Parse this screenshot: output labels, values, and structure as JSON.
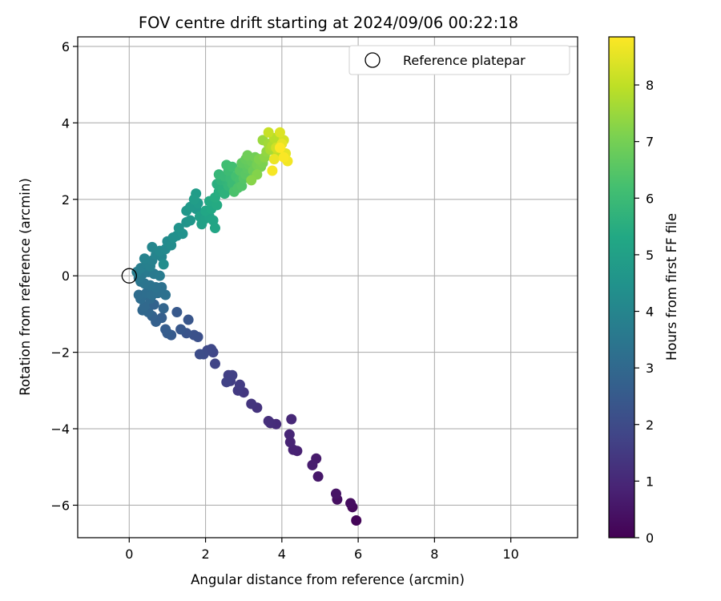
{
  "chart_data": {
    "type": "scatter",
    "title": "FOV centre drift starting at 2024/09/06 00:22:18",
    "xlabel": "Angular distance from reference (arcmin)",
    "ylabel": "Rotation from reference (arcmin)",
    "xlim": [
      -1.35,
      11.75
    ],
    "ylim": [
      -6.85,
      6.25
    ],
    "xticks": [
      0,
      2,
      4,
      6,
      8,
      10
    ],
    "yticks": [
      -6,
      -4,
      -2,
      0,
      2,
      4,
      6
    ],
    "grid": true,
    "legend": {
      "placement": "top-right",
      "entries": [
        {
          "label": "Reference platepar",
          "marker": "open-circle",
          "x": 0,
          "y": 0
        }
      ]
    },
    "colorbar": {
      "label": "Hours from first FF file",
      "colormap": "viridis",
      "range": [
        0,
        8.85
      ],
      "ticks": [
        0,
        1,
        2,
        3,
        4,
        5,
        6,
        7,
        8
      ]
    },
    "series": [
      {
        "points": [
          [
            5.95,
            -6.4,
            0.1
          ],
          [
            5.85,
            -6.05,
            0.2
          ],
          [
            5.8,
            -5.95,
            0.3
          ],
          [
            5.45,
            -5.85,
            0.35
          ],
          [
            5.42,
            -5.7,
            0.45
          ],
          [
            4.95,
            -5.25,
            0.55
          ],
          [
            4.9,
            -4.78,
            0.65
          ],
          [
            4.8,
            -4.95,
            0.7
          ],
          [
            4.4,
            -4.58,
            0.8
          ],
          [
            4.3,
            -4.55,
            0.85
          ],
          [
            4.22,
            -4.35,
            0.9
          ],
          [
            4.2,
            -4.15,
            0.95
          ],
          [
            4.25,
            -3.75,
            1.0
          ],
          [
            3.85,
            -3.88,
            1.1
          ],
          [
            3.7,
            -3.85,
            1.15
          ],
          [
            3.65,
            -3.8,
            1.2
          ],
          [
            3.35,
            -3.45,
            1.3
          ],
          [
            3.2,
            -3.35,
            1.35
          ],
          [
            3.0,
            -3.05,
            1.45
          ],
          [
            2.85,
            -3.0,
            1.5
          ],
          [
            2.9,
            -2.85,
            1.55
          ],
          [
            2.65,
            -2.75,
            1.6
          ],
          [
            2.6,
            -2.6,
            1.65
          ],
          [
            2.7,
            -2.6,
            1.7
          ],
          [
            2.55,
            -2.78,
            1.72
          ],
          [
            2.25,
            -2.3,
            1.8
          ],
          [
            2.2,
            -2.0,
            1.85
          ],
          [
            2.15,
            -1.92,
            1.9
          ],
          [
            2.05,
            -1.95,
            1.95
          ],
          [
            1.95,
            -2.05,
            2.0
          ],
          [
            1.85,
            -2.05,
            2.05
          ],
          [
            1.8,
            -1.6,
            2.15
          ],
          [
            1.7,
            -1.55,
            2.2
          ],
          [
            1.5,
            -1.5,
            2.3
          ],
          [
            1.55,
            -1.15,
            2.35
          ],
          [
            1.35,
            -1.4,
            2.4
          ],
          [
            1.25,
            -0.95,
            2.45
          ],
          [
            1.1,
            -1.55,
            2.5
          ],
          [
            1.0,
            -1.5,
            2.55
          ],
          [
            0.95,
            -1.4,
            2.6
          ],
          [
            0.85,
            -1.1,
            2.65
          ],
          [
            0.7,
            -1.2,
            2.7
          ],
          [
            0.6,
            -1.05,
            2.75
          ],
          [
            0.65,
            -0.75,
            2.8
          ],
          [
            0.9,
            -0.85,
            2.85
          ],
          [
            0.5,
            -0.95,
            2.9
          ],
          [
            0.35,
            -0.9,
            2.95
          ],
          [
            0.4,
            -0.8,
            3.0
          ],
          [
            0.55,
            -0.6,
            3.05
          ],
          [
            0.3,
            -0.6,
            3.1
          ],
          [
            0.25,
            -0.5,
            3.15
          ],
          [
            0.45,
            -0.45,
            3.2
          ],
          [
            0.6,
            -0.5,
            3.22
          ],
          [
            0.75,
            -0.45,
            3.25
          ],
          [
            0.95,
            -0.5,
            3.28
          ],
          [
            0.85,
            -0.3,
            3.3
          ],
          [
            0.7,
            -0.3,
            3.32
          ],
          [
            0.55,
            -0.25,
            3.35
          ],
          [
            0.4,
            -0.2,
            3.4
          ],
          [
            0.3,
            -0.15,
            3.45
          ],
          [
            0.25,
            -0.05,
            3.5
          ],
          [
            0.35,
            0.05,
            3.55
          ],
          [
            0.5,
            0.1,
            3.6
          ],
          [
            0.65,
            0.05,
            3.62
          ],
          [
            0.8,
            0.0,
            3.65
          ],
          [
            0.2,
            0.1,
            3.7
          ],
          [
            0.3,
            0.2,
            3.75
          ],
          [
            0.45,
            0.3,
            3.8
          ],
          [
            0.55,
            0.25,
            3.82
          ],
          [
            0.6,
            0.4,
            3.85
          ],
          [
            0.4,
            0.45,
            3.9
          ],
          [
            0.7,
            0.55,
            3.95
          ],
          [
            0.85,
            0.5,
            4.0
          ],
          [
            0.6,
            0.75,
            4.05
          ],
          [
            0.8,
            0.65,
            4.1
          ],
          [
            0.95,
            0.7,
            4.15
          ],
          [
            1.0,
            0.9,
            4.2
          ],
          [
            1.1,
            0.8,
            4.25
          ],
          [
            0.9,
            0.3,
            4.3
          ],
          [
            1.15,
            1.0,
            4.35
          ],
          [
            1.25,
            1.05,
            4.4
          ],
          [
            1.4,
            1.1,
            4.45
          ],
          [
            1.3,
            1.25,
            4.5
          ],
          [
            1.5,
            1.4,
            4.55
          ],
          [
            1.6,
            1.45,
            4.6
          ],
          [
            1.5,
            1.7,
            4.65
          ],
          [
            1.75,
            1.75,
            4.7
          ],
          [
            1.6,
            1.8,
            4.75
          ],
          [
            1.8,
            1.9,
            4.8
          ],
          [
            1.75,
            2.15,
            4.85
          ],
          [
            1.7,
            2.0,
            4.9
          ],
          [
            1.85,
            1.55,
            4.95
          ],
          [
            1.9,
            1.35,
            5.0
          ],
          [
            2.0,
            1.5,
            5.05
          ],
          [
            2.1,
            1.55,
            5.1
          ],
          [
            2.2,
            1.45,
            5.15
          ],
          [
            2.25,
            1.25,
            5.2
          ],
          [
            2.0,
            1.7,
            5.25
          ],
          [
            2.15,
            1.75,
            5.3
          ],
          [
            2.1,
            1.95,
            5.35
          ],
          [
            2.3,
            1.85,
            5.4
          ],
          [
            2.25,
            2.05,
            5.45
          ],
          [
            2.35,
            2.2,
            5.5
          ],
          [
            2.3,
            2.4,
            5.55
          ],
          [
            2.45,
            2.25,
            5.6
          ],
          [
            2.5,
            2.15,
            5.65
          ],
          [
            2.4,
            2.5,
            5.7
          ],
          [
            2.55,
            2.45,
            5.75
          ],
          [
            2.6,
            2.35,
            5.8
          ],
          [
            2.35,
            2.65,
            5.85
          ],
          [
            2.5,
            2.6,
            5.9
          ],
          [
            2.65,
            2.55,
            5.95
          ],
          [
            2.7,
            2.4,
            6.0
          ],
          [
            2.6,
            2.75,
            6.05
          ],
          [
            2.55,
            2.9,
            6.1
          ],
          [
            2.7,
            2.85,
            6.15
          ],
          [
            2.8,
            2.6,
            6.2
          ],
          [
            2.9,
            2.5,
            6.25
          ],
          [
            2.75,
            2.2,
            6.3
          ],
          [
            2.85,
            2.3,
            6.35
          ],
          [
            2.95,
            2.35,
            6.4
          ],
          [
            3.0,
            2.55,
            6.45
          ],
          [
            2.9,
            2.75,
            6.5
          ],
          [
            3.05,
            2.65,
            6.55
          ],
          [
            3.1,
            2.8,
            6.6
          ],
          [
            2.95,
            2.95,
            6.65
          ],
          [
            3.15,
            2.9,
            6.7
          ],
          [
            3.05,
            3.05,
            6.75
          ],
          [
            3.2,
            3.0,
            6.8
          ],
          [
            3.25,
            2.75,
            6.85
          ],
          [
            3.1,
            3.15,
            6.9
          ],
          [
            3.3,
            3.1,
            6.95
          ],
          [
            3.35,
            2.9,
            7.0
          ],
          [
            3.45,
            2.85,
            7.05
          ],
          [
            3.5,
            2.95,
            7.1
          ],
          [
            3.4,
            3.05,
            7.15
          ],
          [
            3.35,
            2.65,
            7.2
          ],
          [
            3.2,
            2.5,
            7.25
          ],
          [
            3.55,
            3.1,
            7.3
          ],
          [
            3.6,
            3.25,
            7.4
          ],
          [
            3.5,
            3.55,
            7.5
          ],
          [
            3.65,
            3.45,
            7.6
          ],
          [
            3.7,
            3.3,
            7.7
          ],
          [
            3.75,
            3.4,
            7.8
          ],
          [
            3.8,
            3.6,
            7.9
          ],
          [
            3.9,
            3.2,
            8.0
          ],
          [
            3.65,
            3.75,
            8.1
          ],
          [
            3.85,
            3.35,
            8.2
          ],
          [
            4.05,
            3.55,
            8.3
          ],
          [
            3.95,
            3.75,
            8.4
          ],
          [
            4.1,
            3.2,
            8.5
          ],
          [
            4.0,
            3.45,
            8.55
          ],
          [
            3.8,
            3.05,
            8.6
          ],
          [
            4.15,
            3.0,
            8.7
          ],
          [
            3.75,
            2.75,
            8.75
          ],
          [
            4.05,
            3.1,
            8.8
          ],
          [
            3.95,
            3.35,
            8.85
          ]
        ]
      }
    ]
  }
}
